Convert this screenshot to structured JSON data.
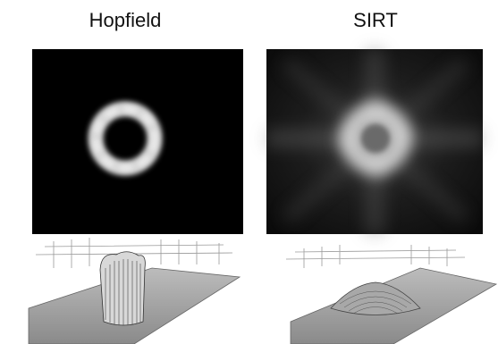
{
  "panels": [
    {
      "title": "Hopfield"
    },
    {
      "title": "SIRT"
    }
  ]
}
